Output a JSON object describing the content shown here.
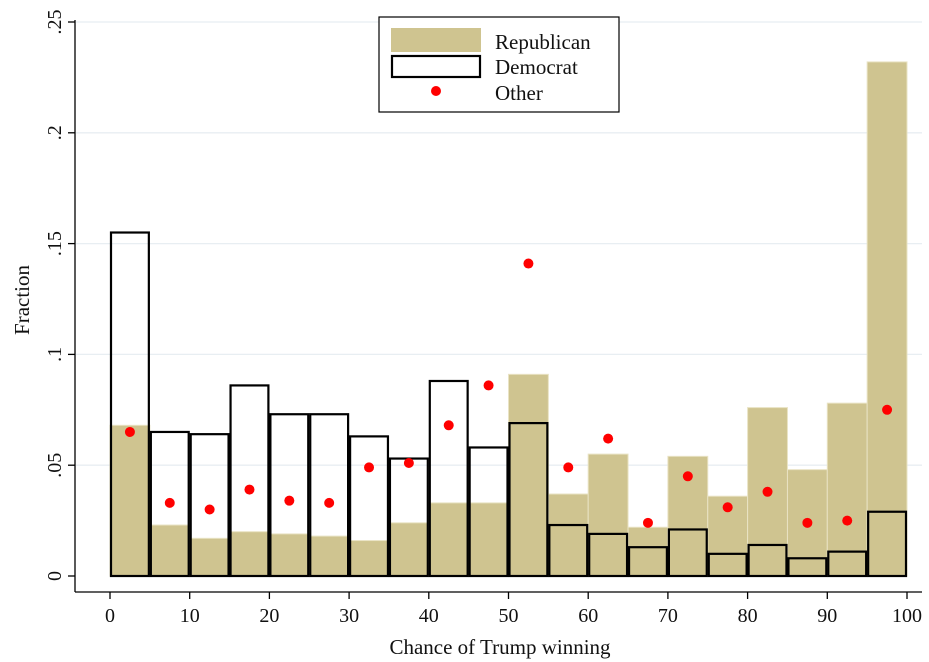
{
  "chart_data": {
    "type": "bar",
    "xlabel": "Chance of Trump winning",
    "ylabel": "Fraction",
    "xlim": [
      0,
      100
    ],
    "ylim": [
      0,
      0.25
    ],
    "x_ticks": [
      0,
      10,
      20,
      30,
      40,
      50,
      60,
      70,
      80,
      90,
      100
    ],
    "x_tick_labels": [
      "0",
      "10",
      "20",
      "30",
      "40",
      "50",
      "60",
      "70",
      "80",
      "90",
      "100"
    ],
    "y_ticks": [
      0,
      0.05,
      0.1,
      0.15,
      0.2,
      0.25
    ],
    "y_tick_labels": [
      "0",
      ".05",
      ".1",
      ".15",
      ".2",
      ".25"
    ],
    "grid": "horizontal",
    "legend_position": "top-center",
    "bins": [
      [
        0,
        5
      ],
      [
        5,
        10
      ],
      [
        10,
        15
      ],
      [
        15,
        20
      ],
      [
        20,
        25
      ],
      [
        25,
        30
      ],
      [
        30,
        35
      ],
      [
        35,
        40
      ],
      [
        40,
        45
      ],
      [
        45,
        50
      ],
      [
        50,
        55
      ],
      [
        55,
        60
      ],
      [
        60,
        65
      ],
      [
        65,
        70
      ],
      [
        70,
        75
      ],
      [
        75,
        80
      ],
      [
        80,
        85
      ],
      [
        85,
        90
      ],
      [
        90,
        95
      ],
      [
        95,
        100
      ]
    ],
    "series": [
      {
        "name": "Republican",
        "kind": "bar-filled",
        "color": "#cfc490",
        "values": [
          0.068,
          0.023,
          0.017,
          0.02,
          0.019,
          0.018,
          0.016,
          0.024,
          0.033,
          0.033,
          0.091,
          0.037,
          0.055,
          0.022,
          0.054,
          0.036,
          0.076,
          0.048,
          0.078,
          0.232
        ]
      },
      {
        "name": "Democrat",
        "kind": "bar-outline",
        "color": "#000000",
        "values": [
          0.155,
          0.065,
          0.064,
          0.086,
          0.073,
          0.073,
          0.063,
          0.053,
          0.088,
          0.058,
          0.069,
          0.023,
          0.019,
          0.013,
          0.021,
          0.01,
          0.014,
          0.008,
          0.011,
          0.029
        ]
      },
      {
        "name": "Other",
        "kind": "point",
        "color": "#ff0000",
        "x": [
          2.5,
          7.5,
          12.5,
          17.5,
          22.5,
          27.5,
          32.5,
          37.5,
          42.5,
          47.5,
          52.5,
          57.5,
          62.5,
          67.5,
          72.5,
          77.5,
          82.5,
          87.5,
          92.5,
          97.5
        ],
        "values": [
          0.065,
          0.033,
          0.03,
          0.039,
          0.034,
          0.033,
          0.049,
          0.051,
          0.068,
          0.086,
          0.141,
          0.049,
          0.062,
          0.024,
          0.045,
          0.031,
          0.038,
          0.024,
          0.025,
          0.075
        ]
      }
    ]
  }
}
